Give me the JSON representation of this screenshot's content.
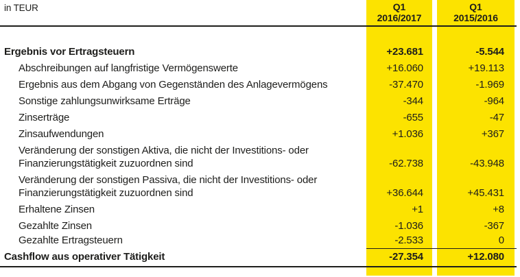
{
  "meta": {
    "unit_label": "in TEUR"
  },
  "colors": {
    "column_highlight": "#FCE300",
    "text": "#1D1D1B",
    "rule": "#1D1D1B"
  },
  "columns": [
    {
      "label": "Q1\n2016/2017"
    },
    {
      "label": "Q1\n2015/2016"
    }
  ],
  "rows": [
    {
      "label": "Ergebnis vor Ertragsteuern",
      "values": [
        "+23.681",
        "-5.544"
      ],
      "indent": false,
      "bold": true,
      "total": false
    },
    {
      "label": "Abschreibungen auf langfristige Vermögenswerte",
      "values": [
        "+16.060",
        "+19.113"
      ],
      "indent": true,
      "bold": false,
      "total": false
    },
    {
      "label": "Ergebnis aus dem Abgang von Gegenständen des Anlagevermögens",
      "values": [
        "-37.470",
        "-1.969"
      ],
      "indent": true,
      "bold": false,
      "total": false
    },
    {
      "label": "Sonstige zahlungsunwirksame Erträge",
      "values": [
        "-344",
        "-964"
      ],
      "indent": true,
      "bold": false,
      "total": false
    },
    {
      "label": "Zinserträge",
      "values": [
        "-655",
        "-47"
      ],
      "indent": true,
      "bold": false,
      "total": false
    },
    {
      "label": "Zinsaufwendungen",
      "values": [
        "+1.036",
        "+367"
      ],
      "indent": true,
      "bold": false,
      "total": false
    },
    {
      "label": "Veränderung der sonstigen Aktiva, die nicht der Investitions- oder\nFinanzierungstätigkeit zuzuordnen sind",
      "values": [
        "-62.738",
        "-43.948"
      ],
      "indent": true,
      "bold": false,
      "total": false
    },
    {
      "label": "Veränderung der sonstigen Passiva, die nicht der Investitions- oder\nFinanzierungstätigkeit zuzuordnen sind",
      "values": [
        "+36.644",
        "+45.431"
      ],
      "indent": true,
      "bold": false,
      "total": false
    },
    {
      "label": "Erhaltene Zinsen",
      "values": [
        "+1",
        "+8"
      ],
      "indent": true,
      "bold": false,
      "total": false
    },
    {
      "label": "Gezahlte Zinsen",
      "values": [
        "-1.036",
        "-367"
      ],
      "indent": true,
      "bold": false,
      "total": false
    },
    {
      "label": "Gezahlte Ertragsteuern",
      "values": [
        "-2.533",
        "0"
      ],
      "indent": true,
      "bold": false,
      "total": false
    },
    {
      "label": "Cashflow aus operativer Tätigkeit",
      "values": [
        "-27.354",
        "+12.080"
      ],
      "indent": false,
      "bold": true,
      "total": true
    }
  ]
}
